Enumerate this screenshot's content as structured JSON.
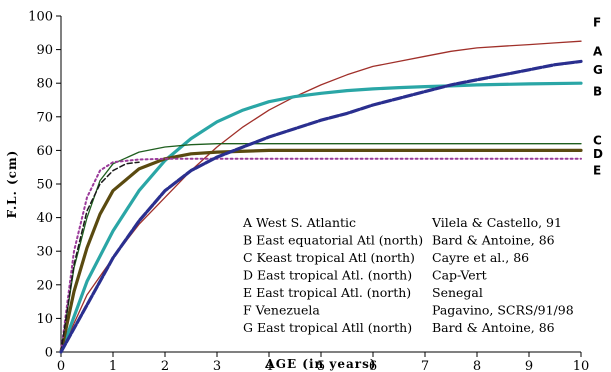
{
  "chart_data": {
    "type": "line",
    "xlabel": "AGE (in years)",
    "ylabel": "F.L. (cm)",
    "xlim": [
      0,
      10
    ],
    "ylim": [
      0,
      100
    ],
    "x_ticks": [
      "0",
      "1",
      "2",
      "3",
      "4",
      "5",
      "6",
      "7",
      "8",
      "9",
      "10"
    ],
    "y_ticks": [
      "0",
      "10",
      "20",
      "30",
      "40",
      "50",
      "60",
      "70",
      "80",
      "90",
      "100"
    ],
    "grid": false,
    "series": [
      {
        "name": "A",
        "label": "A West S. Atlantic",
        "source": "Vilela & Castello, 91",
        "color": "#a0302a",
        "style": "thin",
        "x": [
          0,
          0.5,
          1,
          1.5,
          2,
          2.5,
          3,
          3.5,
          4,
          4.5,
          5,
          5.5,
          6,
          6.5,
          7,
          7.5,
          8,
          8.5,
          9,
          9.5,
          10
        ],
        "y": [
          0,
          17,
          28,
          38,
          46,
          54,
          61,
          67,
          72,
          76,
          79.5,
          82.5,
          85,
          86.5,
          88,
          89.5,
          90.5,
          91,
          91.5,
          92,
          92.5
        ]
      },
      {
        "name": "B",
        "label": "B East equatorial Atl (north)",
        "source": "Bard & Antoine, 86",
        "color": "#2aa6a6",
        "style": "thick",
        "x": [
          0,
          0.5,
          1,
          1.5,
          2,
          2.5,
          3,
          3.5,
          4,
          4.5,
          5,
          5.5,
          6,
          6.5,
          7,
          7.5,
          8,
          9,
          10
        ],
        "y": [
          0,
          21,
          36,
          48,
          57,
          63.5,
          68.5,
          72,
          74.5,
          76,
          77,
          77.8,
          78.3,
          78.7,
          79,
          79.2,
          79.5,
          79.8,
          80
        ]
      },
      {
        "name": "C",
        "label": "C Keast tropical Atl (north)",
        "source": "Cayre et al., 86",
        "color": "#1f5f1f",
        "style": "thin",
        "x": [
          0,
          0.25,
          0.5,
          0.75,
          1,
          1.5,
          2,
          2.5,
          3,
          4,
          5,
          6,
          7,
          8,
          9,
          10
        ],
        "y": [
          0,
          25,
          40,
          51,
          56,
          59.5,
          61,
          61.7,
          62,
          62,
          62,
          62,
          62,
          62,
          62,
          62
        ]
      },
      {
        "name": "D",
        "label": "D East tropical Atl. (north)",
        "source": "Cap-Vert",
        "color": "#5a4a10",
        "style": "thick",
        "x": [
          0,
          0.25,
          0.5,
          0.75,
          1,
          1.5,
          2,
          2.5,
          3,
          4,
          5,
          6,
          7,
          8,
          9,
          10
        ],
        "y": [
          0,
          18,
          31,
          41,
          48,
          54.5,
          57.5,
          59,
          59.5,
          60,
          60,
          60,
          60,
          60,
          60,
          60
        ]
      },
      {
        "name": "E",
        "label": "E East tropical Atl. (north)",
        "source": "Senegal",
        "color": "#9a3a9a",
        "style": "dotted",
        "x": [
          0,
          0.25,
          0.5,
          0.75,
          1,
          1.5,
          2,
          3,
          4,
          5,
          6,
          7,
          8,
          9,
          10
        ],
        "y": [
          0,
          30,
          46,
          54,
          56.5,
          57.3,
          57.5,
          57.5,
          57.5,
          57.5,
          57.5,
          57.5,
          57.5,
          57.5,
          57.5
        ]
      },
      {
        "name": "F",
        "label": "F Venezuela",
        "source": "Pagavino, SCRS/91/98",
        "color": "#1a1a1a",
        "style": "dashed",
        "x": [
          0,
          0.25,
          0.5,
          0.75,
          1,
          1.25,
          1.5
        ],
        "y": [
          0,
          26,
          42,
          50,
          54,
          56,
          56.5
        ]
      },
      {
        "name": "G",
        "label": "G East tropical Atll (north)",
        "source": "Bard & Antoine, 86",
        "color": "#2a2f8f",
        "style": "dashed-thick",
        "x": [
          0,
          0.5,
          1,
          1.5,
          2,
          2.5,
          3,
          3.5,
          4,
          4.5,
          5,
          5.5,
          6,
          6.5,
          7,
          7.5,
          8,
          8.5,
          9,
          9.5,
          10
        ],
        "y": [
          0,
          14,
          28,
          39,
          48,
          54,
          58,
          61,
          64,
          66.5,
          69,
          71,
          73.5,
          75.5,
          77.5,
          79.5,
          81,
          82.5,
          84,
          85.5,
          86.5
        ]
      }
    ],
    "end_labels": [
      {
        "text": "F",
        "y": 98
      },
      {
        "text": "A",
        "y": 89.5
      },
      {
        "text": "G",
        "y": 84
      },
      {
        "text": "B",
        "y": 77.5
      },
      {
        "text": "C",
        "y": 63
      },
      {
        "text": "D",
        "y": 59
      },
      {
        "text": "E",
        "y": 54
      }
    ]
  }
}
